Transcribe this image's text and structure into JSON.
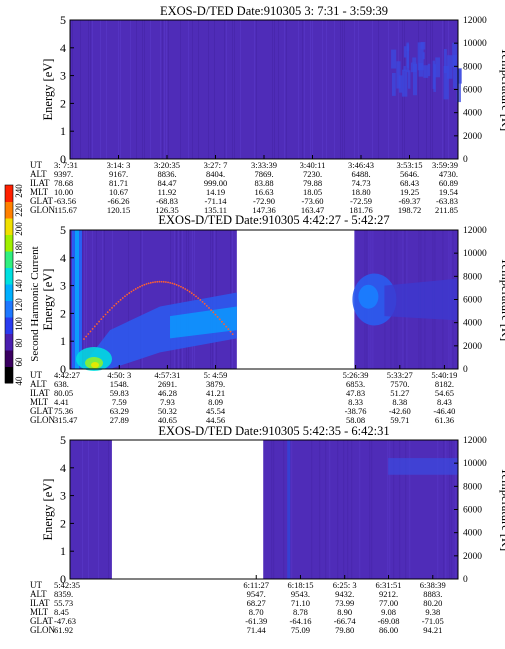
{
  "colorbar": {
    "label": "Second Harmonic Current",
    "ticks": [
      "40",
      "60",
      "80",
      "100",
      "120",
      "140",
      "160",
      "180",
      "200",
      "220",
      "240"
    ],
    "colors": [
      "#000000",
      "#3a0060",
      "#4b1fb0",
      "#2a3cf0",
      "#1e78ff",
      "#00b0ff",
      "#00e0e0",
      "#30f080",
      "#a0f000",
      "#f0e000",
      "#ff8000",
      "#ff2000"
    ]
  },
  "chart_data": [
    {
      "type": "heatmap",
      "title": "EXOS-D/TED   Date:910305   3: 7:31 - 3:59:39",
      "ylabel_left": "Energy [eV]",
      "ylabel_right": "Temperature [K]",
      "ylim_left": [
        0,
        5
      ],
      "ylim_right": [
        0,
        12000
      ],
      "yticks_left": [
        "0",
        "1",
        "2",
        "3",
        "4",
        "5"
      ],
      "yticks_right": [
        "0",
        "2000",
        "4000",
        "6000",
        "8000",
        "10000",
        "12000"
      ],
      "data_segments": [
        [
          0.0,
          1.0
        ]
      ],
      "ephemeris": {
        "labels": [
          "UT",
          "ALT",
          "ILAT",
          "MLT",
          "GLAT",
          "GLON"
        ],
        "columns": [
          [
            "3: 7:31",
            "9397.",
            "78.68",
            "10.00",
            "-63.56",
            "115.67"
          ],
          [
            "3:14: 3",
            "9167.",
            "81.71",
            "10.67",
            "-66.26",
            "120.15"
          ],
          [
            "3:20:35",
            "8836.",
            "84.47",
            "11.92",
            "-68.83",
            "126.35"
          ],
          [
            "3:27: 7",
            "8404.",
            "999.00",
            "14.19",
            "-71.14",
            "135.11"
          ],
          [
            "3:33:39",
            "7869.",
            "83.88",
            "16.63",
            "-72.90",
            "147.36"
          ],
          [
            "3:40:11",
            "7230.",
            "79.88",
            "18.05",
            "-73.60",
            "163.47"
          ],
          [
            "3:46:43",
            "6488.",
            "74.73",
            "18.80",
            "-72.59",
            "181.76"
          ],
          [
            "3:53:15",
            "5646.",
            "68.43",
            "19.25",
            "-69.37",
            "198.72"
          ],
          [
            "3:59:39",
            "4730.",
            "60.89",
            "19.54",
            "-63.83",
            "211.85"
          ]
        ],
        "fractions": [
          0.0,
          0.125,
          0.25,
          0.375,
          0.5,
          0.625,
          0.75,
          0.875,
          1.0
        ]
      }
    },
    {
      "type": "heatmap",
      "title": "EXOS-D/TED   Date:910305   4:42:27 - 5:42:27",
      "ylabel_left": "Energy [eV]",
      "ylabel_right": "Temperature [K]",
      "ylim_left": [
        0,
        5
      ],
      "ylim_right": [
        0,
        12000
      ],
      "yticks_left": [
        "0",
        "1",
        "2",
        "3",
        "4",
        "5"
      ],
      "yticks_right": [
        "0",
        "2000",
        "4000",
        "6000",
        "8000",
        "10000",
        "12000"
      ],
      "data_segments": [
        [
          0.0,
          0.43
        ],
        [
          0.733,
          1.0
        ]
      ],
      "ephemeris": {
        "labels": [
          "UT",
          "ALT",
          "ILAT",
          "MLT",
          "GLAT",
          "GLON"
        ],
        "columns": [
          [
            "4:42:27",
            "638.",
            "80.05",
            "4.41",
            "75.36",
            "315.47"
          ],
          [
            "4:50: 3",
            "1548.",
            "59.83",
            "7.59",
            "63.29",
            "27.89"
          ],
          [
            "4:57:31",
            "2691.",
            "46.28",
            "7.93",
            "50.32",
            "40.65"
          ],
          [
            "5: 4:59",
            "3879.",
            "41.21",
            "8.09",
            "45.54",
            "44.56"
          ],
          [
            "5:26:39",
            "6853.",
            "47.83",
            "8.33",
            "-38.76",
            "58.08"
          ],
          [
            "5:33:27",
            "7570.",
            "51.27",
            "8.38",
            "-42.60",
            "59.71"
          ],
          [
            "5:40:19",
            "8182.",
            "54.65",
            "8.43",
            "-46.40",
            "61.36"
          ]
        ],
        "fractions": [
          0.0,
          0.127,
          0.251,
          0.375,
          0.736,
          0.85,
          0.965
        ]
      }
    },
    {
      "type": "heatmap",
      "title": "EXOS-D/TED   Date:910305   5:42:35 - 6:42:31",
      "ylabel_left": "Energy [eV]",
      "ylabel_right": "Temperature [K]",
      "ylim_left": [
        0,
        5
      ],
      "ylim_right": [
        0,
        12000
      ],
      "yticks_left": [
        "0",
        "1",
        "2",
        "3",
        "4",
        "5"
      ],
      "yticks_right": [
        "0",
        "2000",
        "4000",
        "6000",
        "8000",
        "10000",
        "12000"
      ],
      "data_segments": [
        [
          0.0,
          0.108
        ],
        [
          0.498,
          1.0
        ]
      ],
      "ephemeris": {
        "labels": [
          "UT",
          "ALT",
          "ILAT",
          "MLT",
          "GLAT",
          "GLON"
        ],
        "columns": [
          [
            "5:42:35",
            "8359.",
            "55.73",
            "8.45",
            "-47.63",
            "61.92"
          ],
          [
            "6:11:27",
            "9547.",
            "68.27",
            "8.70",
            "-61.39",
            "71.44"
          ],
          [
            "6:18:15",
            "9543.",
            "71.10",
            "8.78",
            "-64.16",
            "75.09"
          ],
          [
            "6:25: 3",
            "9432.",
            "73.99",
            "8.90",
            "-66.74",
            "79.80"
          ],
          [
            "6:31:51",
            "9212.",
            "77.00",
            "9.08",
            "-69.08",
            "86.00"
          ],
          [
            "6:38:39",
            "8883.",
            "80.20",
            "9.38",
            "-71.05",
            "94.21"
          ]
        ],
        "fractions": [
          0.0,
          0.48,
          0.594,
          0.708,
          0.821,
          0.935
        ]
      }
    }
  ]
}
